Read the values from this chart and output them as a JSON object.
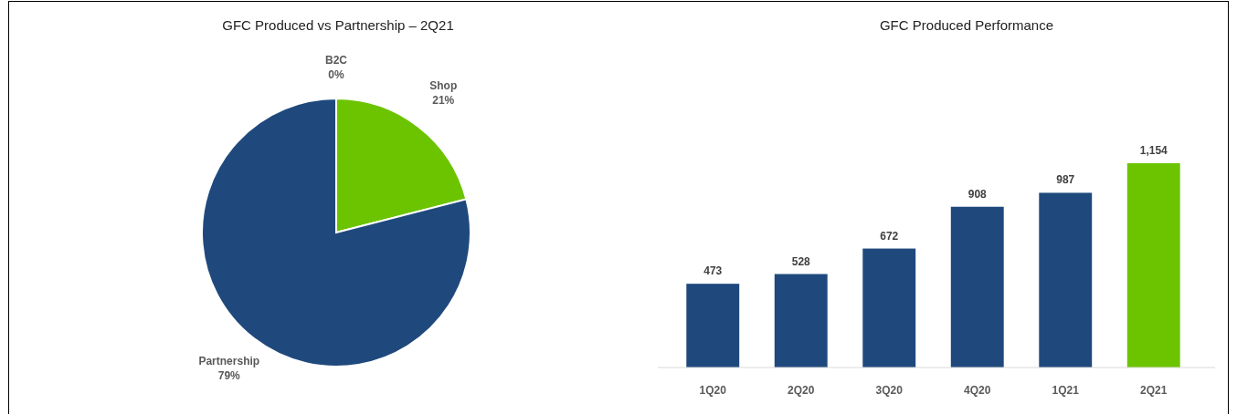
{
  "chart_data": [
    {
      "type": "pie",
      "title": "GFC Produced vs Partnership – 2Q21",
      "categories": [
        "B2C",
        "Shop",
        "Partnership"
      ],
      "values": [
        0,
        21,
        79
      ],
      "colors": [
        "#a5a5a5",
        "#6cc400",
        "#1f497d"
      ],
      "value_labels": [
        "0%",
        "21%",
        "79%"
      ]
    },
    {
      "type": "bar",
      "title": "GFC Produced Performance",
      "categories": [
        "1Q20",
        "2Q20",
        "3Q20",
        "4Q20",
        "1Q21",
        "2Q21"
      ],
      "values": [
        473,
        528,
        672,
        908,
        987,
        1154
      ],
      "colors": [
        "#1f497d",
        "#1f497d",
        "#1f497d",
        "#1f497d",
        "#1f497d",
        "#6cc400"
      ],
      "value_labels": [
        "473",
        "528",
        "672",
        "908",
        "987",
        "1,154"
      ]
    }
  ]
}
